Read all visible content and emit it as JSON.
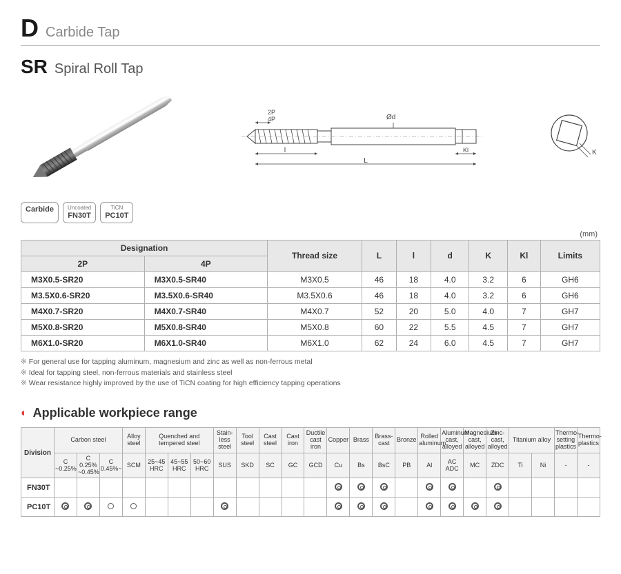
{
  "header": {
    "letter": "D",
    "subtitle": "Carbide Tap"
  },
  "title": {
    "code": "SR",
    "name": "Spiral Roll Tap"
  },
  "drawing_labels": {
    "p2": "2P",
    "p4": "4P",
    "dia": "Ød",
    "l_lower": "l",
    "l_upper": "L",
    "kl": "Kl",
    "k": "K"
  },
  "badges": [
    {
      "top": "",
      "main": "Carbide"
    },
    {
      "top": "Uncoated",
      "main": "FN30T"
    },
    {
      "top": "TiCN",
      "main": "PC10T"
    }
  ],
  "unit": "(mm)",
  "spec": {
    "headers": {
      "designation": "Designation",
      "p2": "2P",
      "p4": "4P",
      "thread": "Thread size",
      "L": "L",
      "l": "l",
      "d": "d",
      "K": "K",
      "Kl": "Kl",
      "limits": "Limits"
    },
    "rows": [
      {
        "p2": "M3X0.5-SR20",
        "p4": "M3X0.5-SR40",
        "thread": "M3X0.5",
        "L": "46",
        "l": "18",
        "d": "4.0",
        "K": "3.2",
        "Kl": "6",
        "limits": "GH6"
      },
      {
        "p2": "M3.5X0.6-SR20",
        "p4": "M3.5X0.6-SR40",
        "thread": "M3.5X0.6",
        "L": "46",
        "l": "18",
        "d": "4.0",
        "K": "3.2",
        "Kl": "6",
        "limits": "GH6"
      },
      {
        "p2": "M4X0.7-SR20",
        "p4": "M4X0.7-SR40",
        "thread": "M4X0.7",
        "L": "52",
        "l": "20",
        "d": "5.0",
        "K": "4.0",
        "Kl": "7",
        "limits": "GH7"
      },
      {
        "p2": "M5X0.8-SR20",
        "p4": "M5X0.8-SR40",
        "thread": "M5X0.8",
        "L": "60",
        "l": "22",
        "d": "5.5",
        "K": "4.5",
        "Kl": "7",
        "limits": "GH7"
      },
      {
        "p2": "M6X1.0-SR20",
        "p4": "M6X1.0-SR40",
        "thread": "M6X1.0",
        "L": "62",
        "l": "24",
        "d": "6.0",
        "K": "4.5",
        "Kl": "7",
        "limits": "GH7"
      }
    ]
  },
  "notes": [
    "For general use for tapping aluminum, magnesium and zinc as well as non-ferrous metal",
    "Ideal for tapping steel, non-ferrous materials and stainless steel",
    "Wear resistance highly improved by the use of TiCN coating for high efficiency tapping operations"
  ],
  "workpiece": {
    "title": "Applicable workpiece range",
    "division": "Division",
    "top_headers": [
      {
        "label": "Carbon steel",
        "span": 3
      },
      {
        "label": "Alloy steel",
        "span": 1
      },
      {
        "label": "Quenched and tempered steel",
        "span": 3
      },
      {
        "label": "Stain-less steel",
        "span": 1
      },
      {
        "label": "Tool steel",
        "span": 1
      },
      {
        "label": "Cast steel",
        "span": 1
      },
      {
        "label": "Cast iron",
        "span": 1
      },
      {
        "label": "Ductile cast iron",
        "span": 1
      },
      {
        "label": "Copper",
        "span": 1
      },
      {
        "label": "Brass",
        "span": 1
      },
      {
        "label": "Brass-cast",
        "span": 1
      },
      {
        "label": "Bronze",
        "span": 1
      },
      {
        "label": "Rolled aluminum",
        "span": 1
      },
      {
        "label": "Aluminum-cast, alloyed",
        "span": 1
      },
      {
        "label": "Magnesium-cast, alloyed",
        "span": 1
      },
      {
        "label": "Zinc-cast, alloyed",
        "span": 1
      },
      {
        "label": "Titanium alloy",
        "span": 2
      },
      {
        "label": "Thermo-setting plastics",
        "span": 1
      },
      {
        "label": "Thermo-plastics",
        "span": 1
      }
    ],
    "sub_headers": [
      "C ~0.25%",
      "C 0.25% ~0.45%",
      "C 0.45%~",
      "SCM",
      "25~45 HRC",
      "45~55 HRC",
      "50~60 HRC",
      "SUS",
      "SKD",
      "SC",
      "GC",
      "GCD",
      "Cu",
      "Bs",
      "BsC",
      "PB",
      "Al",
      "AC ADC",
      "MC",
      "ZDC",
      "Ti",
      "Ni",
      "-",
      "-"
    ],
    "rows": [
      {
        "grade": "FN30T",
        "marks": [
          "",
          "",
          "",
          "",
          "",
          "",
          "",
          "",
          "",
          "",
          "",
          "",
          "d",
          "d",
          "d",
          "",
          "d",
          "d",
          "",
          "d",
          "",
          "",
          "",
          ""
        ]
      },
      {
        "grade": "PC10T",
        "marks": [
          "d",
          "d",
          "s",
          "s",
          "",
          "",
          "",
          "d",
          "",
          "",
          "",
          "",
          "d",
          "d",
          "d",
          "",
          "d",
          "d",
          "d",
          "d",
          "",
          "",
          "",
          ""
        ]
      }
    ]
  },
  "colors": {
    "text": "#333333",
    "muted": "#888888",
    "border": "#b0b0b0",
    "header_bg": "#e8e8e8",
    "accent": "#e03a3a"
  }
}
